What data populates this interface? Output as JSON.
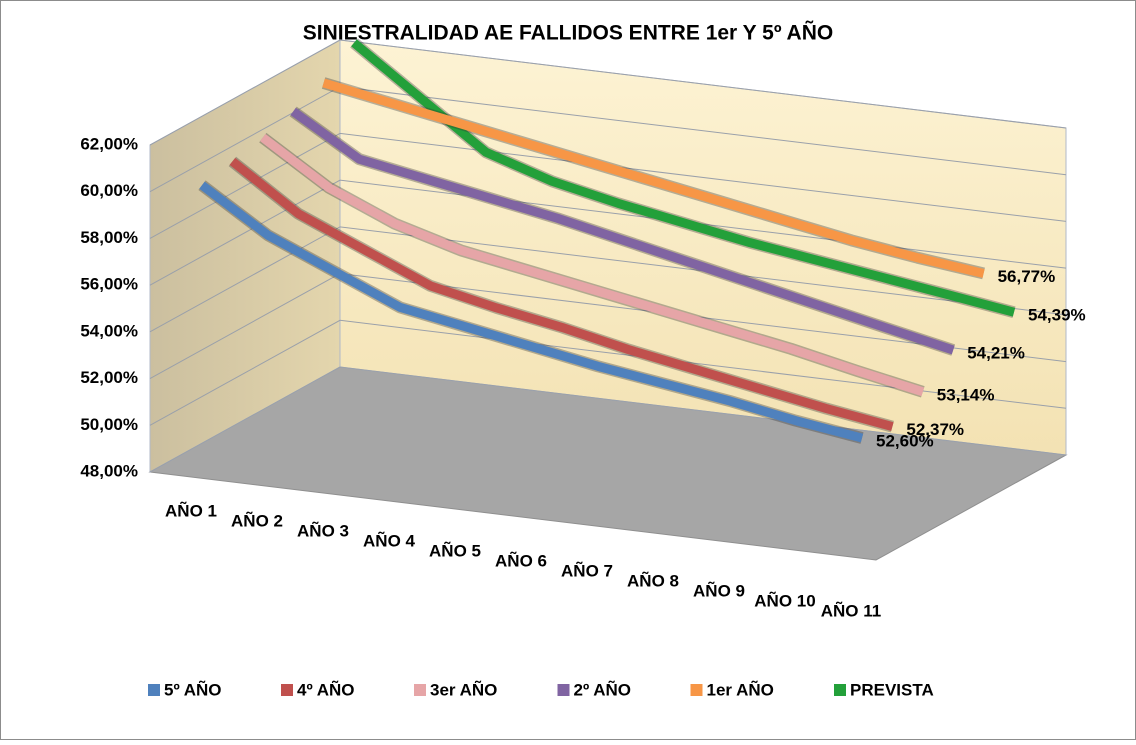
{
  "chart_data": {
    "type": "line3d",
    "title": "SINIESTRALIDAD AE FALLIDOS ENTRE 1er Y 5º AÑO",
    "categories": [
      "AÑO 1",
      "AÑO 2",
      "AÑO 3",
      "AÑO 4",
      "AÑO 5",
      "AÑO 6",
      "AÑO 7",
      "AÑO 8",
      "AÑO 9",
      "AÑO 10",
      "AÑO 11"
    ],
    "ylim": [
      48,
      62
    ],
    "yticks": [
      {
        "value": 48,
        "label": "48,00%"
      },
      {
        "value": 50,
        "label": "50,00%"
      },
      {
        "value": 52,
        "label": "52,00%"
      },
      {
        "value": 54,
        "label": "54,00%"
      },
      {
        "value": 56,
        "label": "56,00%"
      },
      {
        "value": 58,
        "label": "58,00%"
      },
      {
        "value": 60,
        "label": "60,00%"
      },
      {
        "value": 62,
        "label": "62,00%"
      }
    ],
    "grid": true,
    "legend": "bottom",
    "series": [
      {
        "name": "5º AÑO",
        "color": "#4f81bd",
        "values": [
          60.0,
          58.2,
          57.0,
          55.8,
          55.3,
          54.8,
          54.3,
          53.9,
          53.5,
          53.0,
          52.6
        ],
        "value_labels": [
          null,
          null,
          null,
          null,
          null,
          null,
          null,
          null,
          null,
          null,
          "52,60%"
        ]
      },
      {
        "name": "4º AÑO",
        "color": "#c0504d",
        "values": [
          60.3,
          58.4,
          57.2,
          56.0,
          55.4,
          54.9,
          54.3,
          53.8,
          53.3,
          52.8,
          52.37
        ],
        "value_labels": [
          null,
          null,
          null,
          null,
          null,
          null,
          null,
          null,
          null,
          null,
          "52,37%"
        ]
      },
      {
        "name": "3er AÑO",
        "color": "#e6a5a7",
        "values": [
          60.6,
          58.8,
          57.6,
          56.8,
          56.3,
          55.8,
          55.3,
          54.8,
          54.3,
          53.7,
          53.14
        ],
        "value_labels": [
          null,
          null,
          null,
          null,
          null,
          null,
          null,
          null,
          null,
          null,
          "53,14%"
        ]
      },
      {
        "name": "2º AÑO",
        "color": "#8064a2",
        "values": [
          61.0,
          59.3,
          58.8,
          58.3,
          57.8,
          57.2,
          56.6,
          56.0,
          55.4,
          54.8,
          54.21
        ],
        "value_labels": [
          null,
          null,
          null,
          null,
          null,
          null,
          null,
          null,
          null,
          null,
          "54,21%"
        ]
      },
      {
        "name": "1er AÑO",
        "color": "#f79646",
        "values": [
          61.5,
          61.0,
          60.5,
          60.0,
          59.5,
          59.0,
          58.5,
          58.0,
          57.5,
          57.1,
          56.77
        ],
        "value_labels": [
          null,
          null,
          null,
          null,
          null,
          null,
          null,
          null,
          null,
          null,
          "56,77%"
        ]
      },
      {
        "name": "PREVISTA",
        "color": "#23a03a",
        "values": [
          62.5,
          60.5,
          58.5,
          57.6,
          57.0,
          56.5,
          56.0,
          55.6,
          55.2,
          54.8,
          54.39
        ],
        "value_labels": [
          null,
          null,
          null,
          null,
          null,
          null,
          null,
          null,
          null,
          null,
          "54,39%"
        ]
      }
    ]
  }
}
